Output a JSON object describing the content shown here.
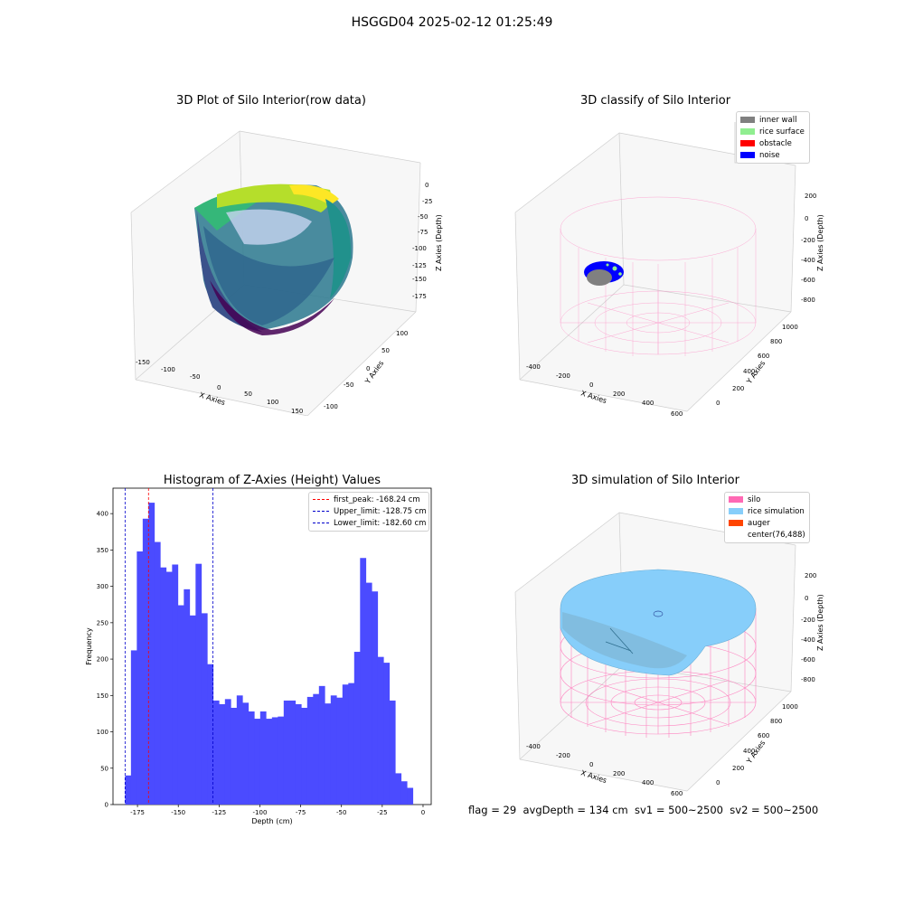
{
  "figure": {
    "suptitle": "HSGGD04 2025-02-12 01:25:49",
    "footer": "flag = 29  avgDepth = 134 cm  sv1 = 500~2500  sv2 = 500~2500"
  },
  "colors": {
    "histogram_bar": "#4b4bff",
    "first_peak_line": "#ff0000",
    "limit_lines": "#0000cc",
    "silo": "#ff69b4",
    "rice_simulation": "#87cefa",
    "auger": "#ff4500",
    "inner_wall": "#808080",
    "rice_surface": "#90ee90",
    "obstacle": "#ff0000",
    "noise": "#0000ff",
    "raw_low": "#440154",
    "raw_high": "#fde725"
  },
  "panels": {
    "raw": {
      "title": "3D Plot of Silo Interior(row data)",
      "xlabel": "X Axies",
      "ylabel": "Y Axies",
      "zlabel": "Z Axies (Depth)",
      "xticks": [
        "-150",
        "-100",
        "-50",
        "0",
        "50",
        "100",
        "150"
      ],
      "yticks": [
        "100",
        "50",
        "0",
        "-50",
        "-100"
      ],
      "zticks": [
        "0",
        "-25",
        "-50",
        "-75",
        "-100",
        "-125",
        "-150",
        "-175"
      ]
    },
    "classify": {
      "title": "3D classify of Silo Interior",
      "xlabel": "X Axies",
      "ylabel": "Y Axies",
      "zlabel": "Z Axies (Depth)",
      "xticks": [
        "-400",
        "-200",
        "0",
        "200",
        "400",
        "600"
      ],
      "yticks": [
        "0",
        "200",
        "400",
        "600",
        "800",
        "1000"
      ],
      "zticks": [
        "200",
        "0",
        "-200",
        "-400",
        "-600",
        "-800"
      ],
      "legend": [
        {
          "label": "inner wall",
          "color": "#808080"
        },
        {
          "label": "rice surface",
          "color": "#90ee90"
        },
        {
          "label": "obstacle",
          "color": "#ff0000"
        },
        {
          "label": "noise",
          "color": "#0000ff"
        }
      ]
    },
    "simulation": {
      "title": "3D simulation of Silo Interior",
      "xlabel": "X Axies",
      "ylabel": "Y Axies",
      "zlabel": "Z Axies (Depth)",
      "xticks": [
        "-400",
        "-200",
        "0",
        "200",
        "400",
        "600"
      ],
      "yticks": [
        "0",
        "200",
        "400",
        "600",
        "800",
        "1000"
      ],
      "zticks": [
        "200",
        "0",
        "-200",
        "-400",
        "-600",
        "-800"
      ],
      "legend": [
        {
          "label": "silo",
          "color": "#ff69b4"
        },
        {
          "label": "rice simulation",
          "color": "#87cefa"
        },
        {
          "label": "auger",
          "color": "#ff4500"
        },
        {
          "label": "center(76,488)",
          "color": ""
        }
      ]
    }
  },
  "chart_data": {
    "type": "bar",
    "title": "Histogram of Z-Axies (Height) Values",
    "xlabel": "Depth (cm)",
    "ylabel": "Frequency",
    "xlim": [
      -190,
      5
    ],
    "ylim": [
      0,
      435
    ],
    "xticks": [
      -175,
      -150,
      -125,
      -100,
      -75,
      -50,
      -25,
      0
    ],
    "yticks": [
      0,
      50,
      100,
      150,
      200,
      250,
      300,
      350,
      400
    ],
    "bin_start": -182.6,
    "bin_width": 3.6,
    "values": [
      40,
      212,
      348,
      393,
      415,
      361,
      326,
      320,
      330,
      274,
      296,
      260,
      331,
      263,
      193,
      143,
      138,
      145,
      133,
      150,
      140,
      128,
      118,
      128,
      118,
      120,
      121,
      143,
      143,
      138,
      133,
      148,
      152,
      163,
      139,
      150,
      147,
      165,
      167,
      210,
      339,
      305,
      293,
      203,
      195,
      143,
      43,
      32,
      23
    ],
    "vlines": [
      {
        "label": "first_peak: -168.24 cm",
        "x": -168.24,
        "color": "#ff0000"
      },
      {
        "label": "Upper_limit: -128.75 cm",
        "x": -128.75,
        "color": "#0000cc"
      },
      {
        "label": "Lower_limit: -182.60 cm",
        "x": -182.6,
        "color": "#0000cc"
      }
    ],
    "legend_position": "top-right"
  }
}
